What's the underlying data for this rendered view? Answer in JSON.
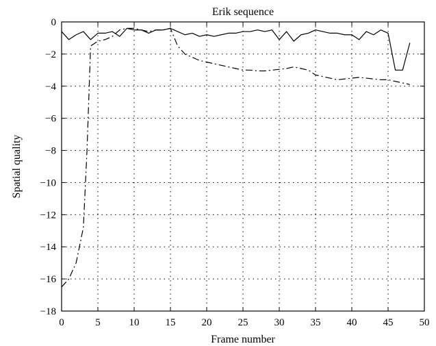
{
  "chart_data": {
    "type": "line",
    "title": "Erik sequence",
    "xlabel": "Frame number",
    "ylabel": "Spatial quality",
    "xlim": [
      0,
      50
    ],
    "ylim": [
      -18,
      0
    ],
    "x_ticks": [
      0,
      5,
      10,
      15,
      20,
      25,
      30,
      35,
      40,
      45,
      50
    ],
    "y_ticks": [
      0,
      -2,
      -4,
      -6,
      -8,
      -10,
      -12,
      -14,
      -16,
      -18
    ],
    "grid": true,
    "series": [
      {
        "style": "solid",
        "color": "#000000",
        "x": [
          0,
          1,
          2,
          3,
          4,
          5,
          6,
          7,
          8,
          9,
          10,
          11,
          12,
          13,
          14,
          15,
          16,
          17,
          18,
          19,
          20,
          21,
          22,
          23,
          24,
          25,
          26,
          27,
          28,
          29,
          30,
          31,
          32,
          33,
          34,
          35,
          36,
          37,
          38,
          39,
          40,
          41,
          42,
          43,
          44,
          45,
          46,
          47,
          48
        ],
        "y": [
          -0.6,
          -1.1,
          -0.8,
          -0.6,
          -1.1,
          -0.7,
          -0.7,
          -0.6,
          -0.9,
          -0.4,
          -0.5,
          -0.5,
          -0.7,
          -0.5,
          -0.5,
          -0.4,
          -0.6,
          -0.8,
          -0.7,
          -0.9,
          -0.8,
          -0.9,
          -0.8,
          -0.7,
          -0.7,
          -0.6,
          -0.6,
          -0.5,
          -0.6,
          -0.5,
          -1.1,
          -0.6,
          -1.2,
          -0.8,
          -0.7,
          -0.5,
          -0.6,
          -0.7,
          -0.7,
          -0.8,
          -0.8,
          -1.1,
          -0.6,
          -0.8,
          -0.5,
          -0.7,
          -3.0,
          -3.0,
          -1.3
        ]
      },
      {
        "style": "dashdot",
        "color": "#000000",
        "x": [
          0,
          1,
          2,
          3,
          3.5,
          4,
          5,
          6,
          7,
          8,
          9,
          10,
          11,
          12,
          13,
          14,
          15,
          16,
          17,
          18,
          19,
          20,
          21,
          22,
          23,
          24,
          25,
          26,
          27,
          28,
          29,
          30,
          31,
          32,
          33,
          34,
          35,
          36,
          37,
          38,
          39,
          40,
          41,
          42,
          43,
          44,
          45,
          46,
          47,
          48
        ],
        "y": [
          -16.5,
          -16.0,
          -15.0,
          -12.8,
          -8.0,
          -1.5,
          -1.2,
          -1.1,
          -0.9,
          -0.5,
          -0.4,
          -0.4,
          -0.5,
          -0.6,
          -0.5,
          -0.5,
          -0.4,
          -1.5,
          -2.0,
          -2.2,
          -2.4,
          -2.5,
          -2.6,
          -2.7,
          -2.8,
          -2.9,
          -3.0,
          -3.0,
          -3.05,
          -3.05,
          -3.0,
          -2.95,
          -2.9,
          -2.8,
          -2.9,
          -3.0,
          -3.3,
          -3.4,
          -3.5,
          -3.6,
          -3.55,
          -3.5,
          -3.45,
          -3.5,
          -3.55,
          -3.6,
          -3.6,
          -3.7,
          -3.8,
          -3.9
        ]
      }
    ]
  }
}
